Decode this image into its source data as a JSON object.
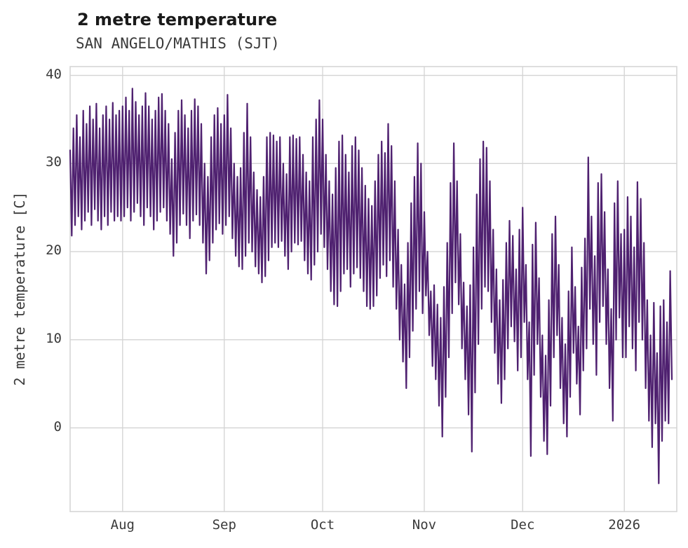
{
  "chart_data": {
    "type": "line",
    "title": "2 metre temperature",
    "subtitle": "SAN ANGELO/MATHIS (SJT)",
    "ylabel": "2 metre temperature [C]",
    "xlabel": "",
    "line_color": "#4f2170",
    "grid": true,
    "grid_color": "#d3d3d3",
    "legend": "none",
    "ylim": [
      -9.5,
      41
    ],
    "yticks": [
      0,
      10,
      20,
      30,
      40
    ],
    "x_domain": [
      0,
      185
    ],
    "x_unit": "days (day 0 = mid-July 2025, two points per day: afternoon max, morning min)",
    "xticks": [
      {
        "label": "Aug",
        "day": 16
      },
      {
        "label": "Sep",
        "day": 47
      },
      {
        "label": "Oct",
        "day": 77
      },
      {
        "label": "Nov",
        "day": 108
      },
      {
        "label": "Dec",
        "day": 138
      },
      {
        "label": "2026",
        "day": 169
      }
    ],
    "series": [
      {
        "name": "2 metre temperature",
        "daily_max": [
          31.5,
          34,
          35.5,
          33,
          36,
          34.5,
          36.5,
          35,
          36.8,
          34,
          35.5,
          36.5,
          35,
          36.9,
          35.5,
          36,
          36.5,
          37.5,
          36,
          38.5,
          37,
          35.5,
          36.5,
          38,
          36.5,
          35,
          36,
          37.5,
          37.9,
          36,
          34.5,
          30.5,
          33.5,
          36,
          37.2,
          35.5,
          34,
          36,
          37.3,
          36.5,
          34.5,
          30,
          28.5,
          33,
          35.5,
          36.3,
          34.5,
          35.5,
          37.8,
          34,
          30,
          28.5,
          29.5,
          33.5,
          36.8,
          33,
          29,
          27,
          26.2,
          28.5,
          33,
          33.5,
          33.2,
          32.5,
          33,
          30,
          28.8,
          33,
          33.2,
          32.8,
          33,
          31,
          29,
          28,
          33,
          35,
          37.2,
          35,
          31,
          28,
          26.5,
          29.5,
          32.5,
          33.2,
          31,
          29,
          32,
          33,
          31.5,
          29.5,
          27.5,
          26,
          25.2,
          28,
          31,
          32.5,
          31.2,
          34.5,
          32,
          28,
          22.5,
          18.5,
          16.3,
          21,
          25.5,
          28.5,
          32.3,
          30,
          24.5,
          20,
          15.5,
          16.2,
          14,
          12.5,
          16,
          21,
          27.8,
          32.3,
          28,
          22,
          16.5,
          13.8,
          16.2,
          20.5,
          26.5,
          30.5,
          32.5,
          31.8,
          28,
          22.5,
          18,
          14.5,
          16.8,
          21,
          23.5,
          21.8,
          18,
          22.5,
          25,
          18.5,
          12,
          20.8,
          23.3,
          17,
          10.5,
          8.2,
          14.5,
          22,
          24,
          18.5,
          12.5,
          9.5,
          15.5,
          20.5,
          16,
          11.5,
          18.2,
          21.5,
          30.7,
          24,
          19.5,
          27.8,
          28.8,
          24.5,
          18,
          13.5,
          25.5,
          28,
          22,
          22.5,
          26.2,
          24,
          20.5,
          27.9,
          26,
          21,
          14.5,
          10.5,
          14.2,
          8.5,
          13.8,
          14.5,
          12,
          17.8
        ],
        "daily_min": [
          21.8,
          23,
          24,
          22.5,
          23.5,
          24.5,
          23,
          24.8,
          23.5,
          22.5,
          24,
          23,
          24.5,
          23.5,
          24,
          23.5,
          24,
          25,
          23.5,
          24.5,
          25.5,
          24,
          23,
          25,
          24,
          22.5,
          23.5,
          24.5,
          25,
          23.5,
          22,
          19.5,
          21,
          23,
          24.3,
          23,
          21.5,
          23.5,
          24.2,
          23,
          21,
          17.5,
          19,
          21,
          22.5,
          23.2,
          22,
          23,
          24,
          21.5,
          19.5,
          18.3,
          18,
          19.5,
          21,
          20,
          18.3,
          17.5,
          16.5,
          17.2,
          19,
          20.5,
          21,
          20.5,
          21.2,
          19.5,
          18,
          20,
          21,
          20.8,
          21.2,
          19,
          17.5,
          16.8,
          18.5,
          20,
          22,
          20.5,
          18,
          15.5,
          14,
          13.8,
          15.5,
          17.5,
          18,
          16,
          17.5,
          18.2,
          17,
          15.5,
          13.8,
          13.5,
          13.8,
          15,
          17,
          18.5,
          17.2,
          19,
          16,
          13.5,
          10,
          7.5,
          4.5,
          8,
          11,
          13.5,
          15.5,
          13,
          15,
          10.5,
          7,
          5.5,
          2.5,
          -1,
          3.5,
          8,
          13,
          16.5,
          14,
          9,
          5.5,
          1.5,
          -2.7,
          4,
          9.5,
          13.5,
          16,
          15.5,
          12,
          8.5,
          5,
          2.8,
          5.5,
          9,
          11.5,
          9.8,
          6.5,
          8,
          12,
          5.5,
          -3.2,
          6,
          9.5,
          3.5,
          -1.5,
          -3,
          2.5,
          8,
          10.5,
          4.5,
          0.5,
          -1,
          3.5,
          8.5,
          5,
          1.5,
          6.5,
          9,
          13.5,
          9.5,
          6,
          12,
          13.8,
          9.5,
          4.5,
          0.8,
          10,
          12.5,
          8,
          8,
          11.5,
          9,
          6.5,
          12,
          10,
          4.5,
          0.8,
          -2.2,
          0.5,
          -6.3,
          -1.5,
          0.8,
          0.5,
          5.5
        ]
      }
    ]
  }
}
